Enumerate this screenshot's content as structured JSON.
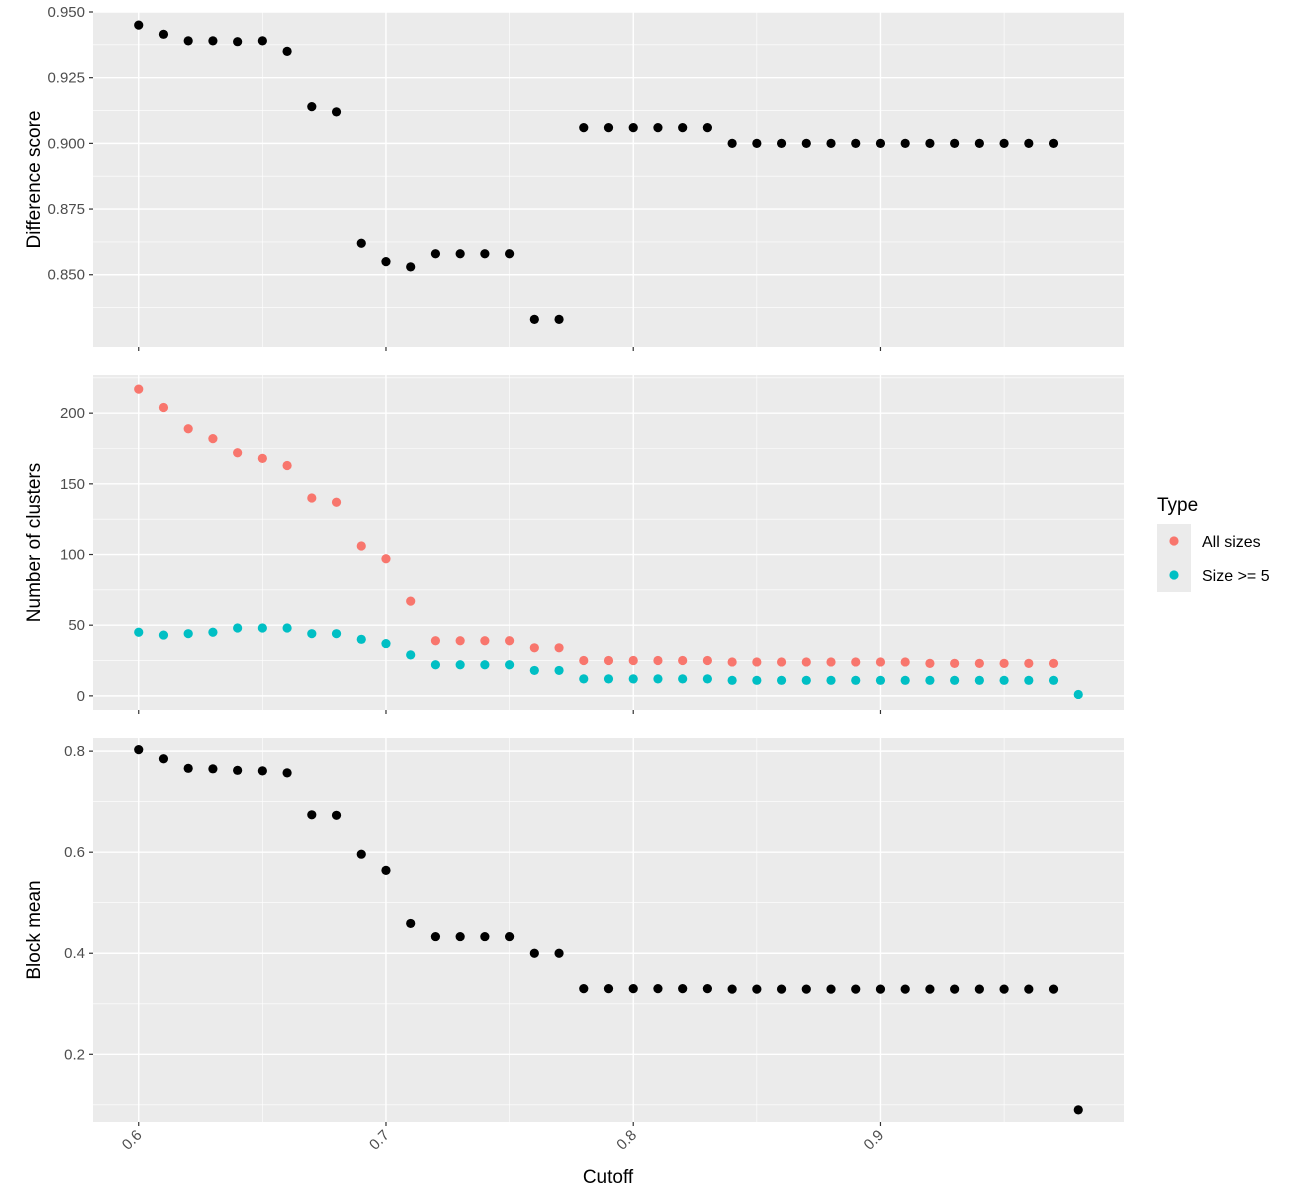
{
  "chart_data": {
    "type": "scatter",
    "xlabel": "Cutoff",
    "x_ticks": [
      0.6,
      0.7,
      0.8,
      0.9
    ],
    "x_tick_labels": [
      "0.6",
      "0.7",
      "0.8",
      "0.9"
    ],
    "xlim": [
      0.5815,
      0.9985
    ],
    "grid": true,
    "legend": {
      "title": "Type",
      "placement": "right",
      "entries": [
        {
          "label": "All sizes",
          "color": "#f8766d"
        },
        {
          "label": "Size >= 5",
          "color": "#00bfc4"
        }
      ]
    },
    "panels": [
      {
        "ylabel": "Difference score",
        "ylim": [
          0.8225,
          0.95
        ],
        "y_ticks": [
          0.85,
          0.875,
          0.9,
          0.925,
          0.95
        ],
        "y_tick_labels": [
          "0.850",
          "0.875",
          "0.900",
          "0.925",
          "0.950"
        ],
        "series": [
          {
            "color": "#000000",
            "x": [
              0.6,
              0.61,
              0.62,
              0.63,
              0.64,
              0.65,
              0.66,
              0.67,
              0.68,
              0.69,
              0.7,
              0.71,
              0.72,
              0.73,
              0.74,
              0.75,
              0.76,
              0.77,
              0.78,
              0.79,
              0.8,
              0.81,
              0.82,
              0.83,
              0.84,
              0.85,
              0.86,
              0.87,
              0.88,
              0.89,
              0.9,
              0.91,
              0.92,
              0.93,
              0.94,
              0.95,
              0.96,
              0.97
            ],
            "y": [
              0.945,
              0.9415,
              0.939,
              0.939,
              0.9387,
              0.939,
              0.935,
              0.914,
              0.912,
              0.862,
              0.855,
              0.853,
              0.858,
              0.858,
              0.858,
              0.858,
              0.833,
              0.833,
              0.906,
              0.906,
              0.906,
              0.906,
              0.906,
              0.906,
              0.9,
              0.9,
              0.9,
              0.9,
              0.9,
              0.9,
              0.9,
              0.9,
              0.9,
              0.9,
              0.9,
              0.9,
              0.9,
              0.9
            ]
          }
        ]
      },
      {
        "ylabel": "Number of clusters",
        "ylim": [
          -10,
          227
        ],
        "y_ticks": [
          0,
          50,
          100,
          150,
          200
        ],
        "y_tick_labels": [
          "0",
          "50",
          "100",
          "150",
          "200"
        ],
        "series": [
          {
            "name": "All sizes",
            "color": "#f8766d",
            "x": [
              0.6,
              0.61,
              0.62,
              0.63,
              0.64,
              0.65,
              0.66,
              0.67,
              0.68,
              0.69,
              0.7,
              0.71,
              0.72,
              0.73,
              0.74,
              0.75,
              0.76,
              0.77,
              0.78,
              0.79,
              0.8,
              0.81,
              0.82,
              0.83,
              0.84,
              0.85,
              0.86,
              0.87,
              0.88,
              0.89,
              0.9,
              0.91,
              0.92,
              0.93,
              0.94,
              0.95,
              0.96,
              0.97
            ],
            "y": [
              217,
              204,
              189,
              182,
              172,
              168,
              163,
              140,
              137,
              106,
              97,
              67,
              39,
              39,
              39,
              39,
              34,
              34,
              25,
              25,
              25,
              25,
              25,
              25,
              24,
              24,
              24,
              24,
              24,
              24,
              24,
              24,
              23,
              23,
              23,
              23,
              23,
              23
            ]
          },
          {
            "name": "Size >= 5",
            "color": "#00bfc4",
            "x": [
              0.6,
              0.61,
              0.62,
              0.63,
              0.64,
              0.65,
              0.66,
              0.67,
              0.68,
              0.69,
              0.7,
              0.71,
              0.72,
              0.73,
              0.74,
              0.75,
              0.76,
              0.77,
              0.78,
              0.79,
              0.8,
              0.81,
              0.82,
              0.83,
              0.84,
              0.85,
              0.86,
              0.87,
              0.88,
              0.89,
              0.9,
              0.91,
              0.92,
              0.93,
              0.94,
              0.95,
              0.96,
              0.97,
              0.98
            ],
            "y": [
              45,
              43,
              44,
              45,
              48,
              48,
              48,
              44,
              44,
              40,
              37,
              29,
              22,
              22,
              22,
              22,
              18,
              18,
              12,
              12,
              12,
              12,
              12,
              12,
              11,
              11,
              11,
              11,
              11,
              11,
              11,
              11,
              11,
              11,
              11,
              11,
              11,
              11,
              1
            ]
          }
        ]
      },
      {
        "ylabel": "Block mean",
        "ylim": [
          0.066,
          0.826
        ],
        "y_ticks": [
          0.2,
          0.4,
          0.6,
          0.8
        ],
        "y_tick_labels": [
          "0.2",
          "0.4",
          "0.6",
          "0.8"
        ],
        "series": [
          {
            "color": "#000000",
            "x": [
              0.6,
              0.61,
              0.62,
              0.63,
              0.64,
              0.65,
              0.66,
              0.67,
              0.68,
              0.69,
              0.7,
              0.71,
              0.72,
              0.73,
              0.74,
              0.75,
              0.76,
              0.77,
              0.78,
              0.79,
              0.8,
              0.81,
              0.82,
              0.83,
              0.84,
              0.85,
              0.86,
              0.87,
              0.88,
              0.89,
              0.9,
              0.91,
              0.92,
              0.93,
              0.94,
              0.95,
              0.96,
              0.97,
              0.98
            ],
            "y": [
              0.803,
              0.785,
              0.766,
              0.765,
              0.762,
              0.761,
              0.757,
              0.674,
              0.673,
              0.596,
              0.564,
              0.459,
              0.433,
              0.433,
              0.433,
              0.433,
              0.4,
              0.4,
              0.33,
              0.33,
              0.33,
              0.33,
              0.33,
              0.33,
              0.329,
              0.329,
              0.329,
              0.329,
              0.329,
              0.329,
              0.329,
              0.329,
              0.329,
              0.329,
              0.329,
              0.329,
              0.329,
              0.329,
              0.09
            ]
          }
        ]
      }
    ]
  }
}
